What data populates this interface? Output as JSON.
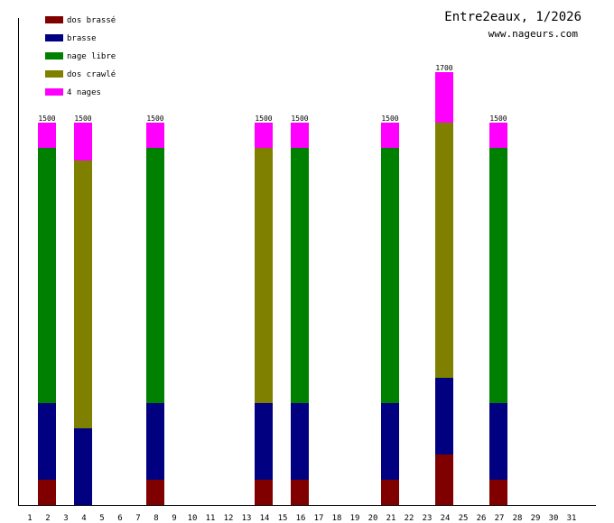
{
  "header": {
    "title": "Entre2eaux, 1/2026",
    "site": "www.nageurs.com"
  },
  "chart_data": {
    "type": "bar",
    "stacked": true,
    "title": "Entre2eaux, 1/2026",
    "subtitle": "www.nageurs.com",
    "xlabel": "",
    "ylabel": "",
    "ylim": [
      0,
      1900
    ],
    "grid": false,
    "legend_position": "top-left",
    "categories": [
      "1",
      "2",
      "3",
      "4",
      "5",
      "6",
      "7",
      "8",
      "9",
      "10",
      "11",
      "12",
      "13",
      "14",
      "15",
      "16",
      "17",
      "18",
      "19",
      "20",
      "21",
      "22",
      "23",
      "24",
      "25",
      "26",
      "27",
      "28",
      "29",
      "30",
      "31"
    ],
    "series": [
      {
        "name": "dos brassé",
        "color": "#800000",
        "values": [
          0,
          100,
          0,
          0,
          0,
          0,
          0,
          100,
          0,
          0,
          0,
          0,
          0,
          100,
          0,
          100,
          0,
          0,
          0,
          0,
          100,
          0,
          0,
          200,
          0,
          0,
          100,
          0,
          0,
          0,
          0
        ]
      },
      {
        "name": "brasse",
        "color": "#000080",
        "values": [
          0,
          300,
          0,
          300,
          0,
          0,
          0,
          300,
          0,
          0,
          0,
          0,
          0,
          300,
          0,
          300,
          0,
          0,
          0,
          0,
          300,
          0,
          0,
          300,
          0,
          0,
          300,
          0,
          0,
          0,
          0
        ]
      },
      {
        "name": "nage libre",
        "color": "#008000",
        "values": [
          0,
          1000,
          0,
          0,
          0,
          0,
          0,
          1000,
          0,
          0,
          0,
          0,
          0,
          0,
          0,
          1000,
          0,
          0,
          0,
          0,
          1000,
          0,
          0,
          0,
          0,
          0,
          1000,
          0,
          0,
          0,
          0
        ]
      },
      {
        "name": "dos crawlé",
        "color": "#808000",
        "values": [
          0,
          0,
          0,
          1050,
          0,
          0,
          0,
          0,
          0,
          0,
          0,
          0,
          0,
          1000,
          0,
          0,
          0,
          0,
          0,
          0,
          0,
          0,
          0,
          1000,
          0,
          0,
          0,
          0,
          0,
          0,
          0
        ]
      },
      {
        "name": "4 nages",
        "color": "#ff00ff",
        "values": [
          0,
          100,
          0,
          150,
          0,
          0,
          0,
          100,
          0,
          0,
          0,
          0,
          0,
          100,
          0,
          100,
          0,
          0,
          0,
          0,
          100,
          0,
          0,
          200,
          0,
          0,
          100,
          0,
          0,
          0,
          0
        ]
      }
    ],
    "totals": [
      {
        "day": "2",
        "label": "1500"
      },
      {
        "day": "4",
        "label": "1500"
      },
      {
        "day": "8",
        "label": "1500"
      },
      {
        "day": "14",
        "label": "1500"
      },
      {
        "day": "16",
        "label": "1500"
      },
      {
        "day": "21",
        "label": "1500"
      },
      {
        "day": "24",
        "label": "1700"
      },
      {
        "day": "27",
        "label": "1500"
      }
    ]
  }
}
